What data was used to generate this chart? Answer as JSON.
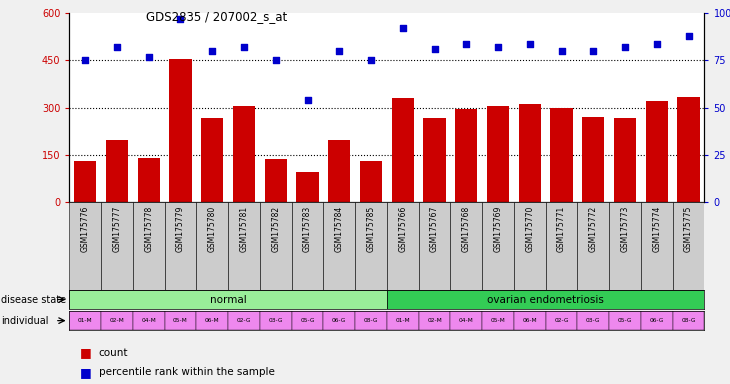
{
  "title": "GDS2835 / 207002_s_at",
  "samples": [
    "GSM175776",
    "GSM175777",
    "GSM175778",
    "GSM175779",
    "GSM175780",
    "GSM175781",
    "GSM175782",
    "GSM175783",
    "GSM175784",
    "GSM175785",
    "GSM175766",
    "GSM175767",
    "GSM175768",
    "GSM175769",
    "GSM175770",
    "GSM175771",
    "GSM175772",
    "GSM175773",
    "GSM175774",
    "GSM175775"
  ],
  "counts": [
    130,
    195,
    140,
    455,
    265,
    305,
    135,
    95,
    195,
    130,
    330,
    265,
    295,
    305,
    310,
    300,
    270,
    265,
    320,
    335
  ],
  "percentiles": [
    75,
    82,
    77,
    97,
    80,
    82,
    75,
    54,
    80,
    75,
    92,
    81,
    84,
    82,
    84,
    80,
    80,
    82,
    84,
    88
  ],
  "bar_color": "#cc0000",
  "dot_color": "#0000cc",
  "left_ylim": [
    0,
    600
  ],
  "right_ylim": [
    0,
    100
  ],
  "left_yticks": [
    0,
    150,
    300,
    450,
    600
  ],
  "right_yticks": [
    0,
    25,
    50,
    75,
    100
  ],
  "right_yticklabels": [
    "0",
    "25",
    "50",
    "75",
    "100%"
  ],
  "hlines": [
    150,
    300,
    450
  ],
  "normal_label": "normal",
  "disease_label": "ovarian endometriosis",
  "normal_color": "#99ee99",
  "disease_color": "#33cc55",
  "individual_color": "#ee88ee",
  "individuals": [
    "01-M",
    "02-M",
    "04-M",
    "05-M",
    "06-M",
    "02-G",
    "03-G",
    "05-G",
    "06-G",
    "08-G",
    "01-M",
    "02-M",
    "04-M",
    "05-M",
    "06-M",
    "02-G",
    "03-G",
    "05-G",
    "06-G",
    "08-G"
  ],
  "disease_state_label": "disease state",
  "individual_label": "individual",
  "legend_count": "count",
  "legend_percentile": "percentile rank within the sample",
  "tick_bg_color": "#cccccc",
  "fig_bg": "#f0f0f0"
}
